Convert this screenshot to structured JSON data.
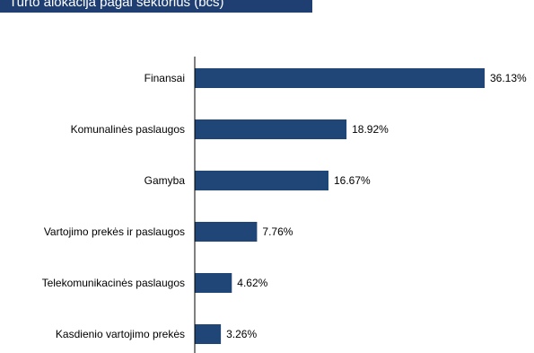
{
  "header": {
    "title": "Turto alokacija pagal sektorius (bcs)"
  },
  "colors": {
    "header_bg": "#1f3f73",
    "bar": "#1f4676",
    "axis": "#000000"
  },
  "chart_data": {
    "type": "bar",
    "orientation": "horizontal",
    "categories": [
      "Finansai",
      "Komunalinės paslaugos",
      "Gamyba",
      "Vartojimo prekės ir paslaugos",
      "Telekomunikacinės paslaugos",
      "Kasdienio vartojimo prekės"
    ],
    "values": [
      36.13,
      18.92,
      16.67,
      7.76,
      4.62,
      3.26
    ],
    "value_labels": [
      "36.13%",
      "18.92%",
      "16.67%",
      "7.76%",
      "4.62%",
      "3.26%"
    ],
    "title": "Turto alokacija pagal sektorius (bcs)",
    "xlabel": "",
    "ylabel": "",
    "xlim": [
      0,
      36.13
    ],
    "grid": false,
    "legend": "none"
  }
}
